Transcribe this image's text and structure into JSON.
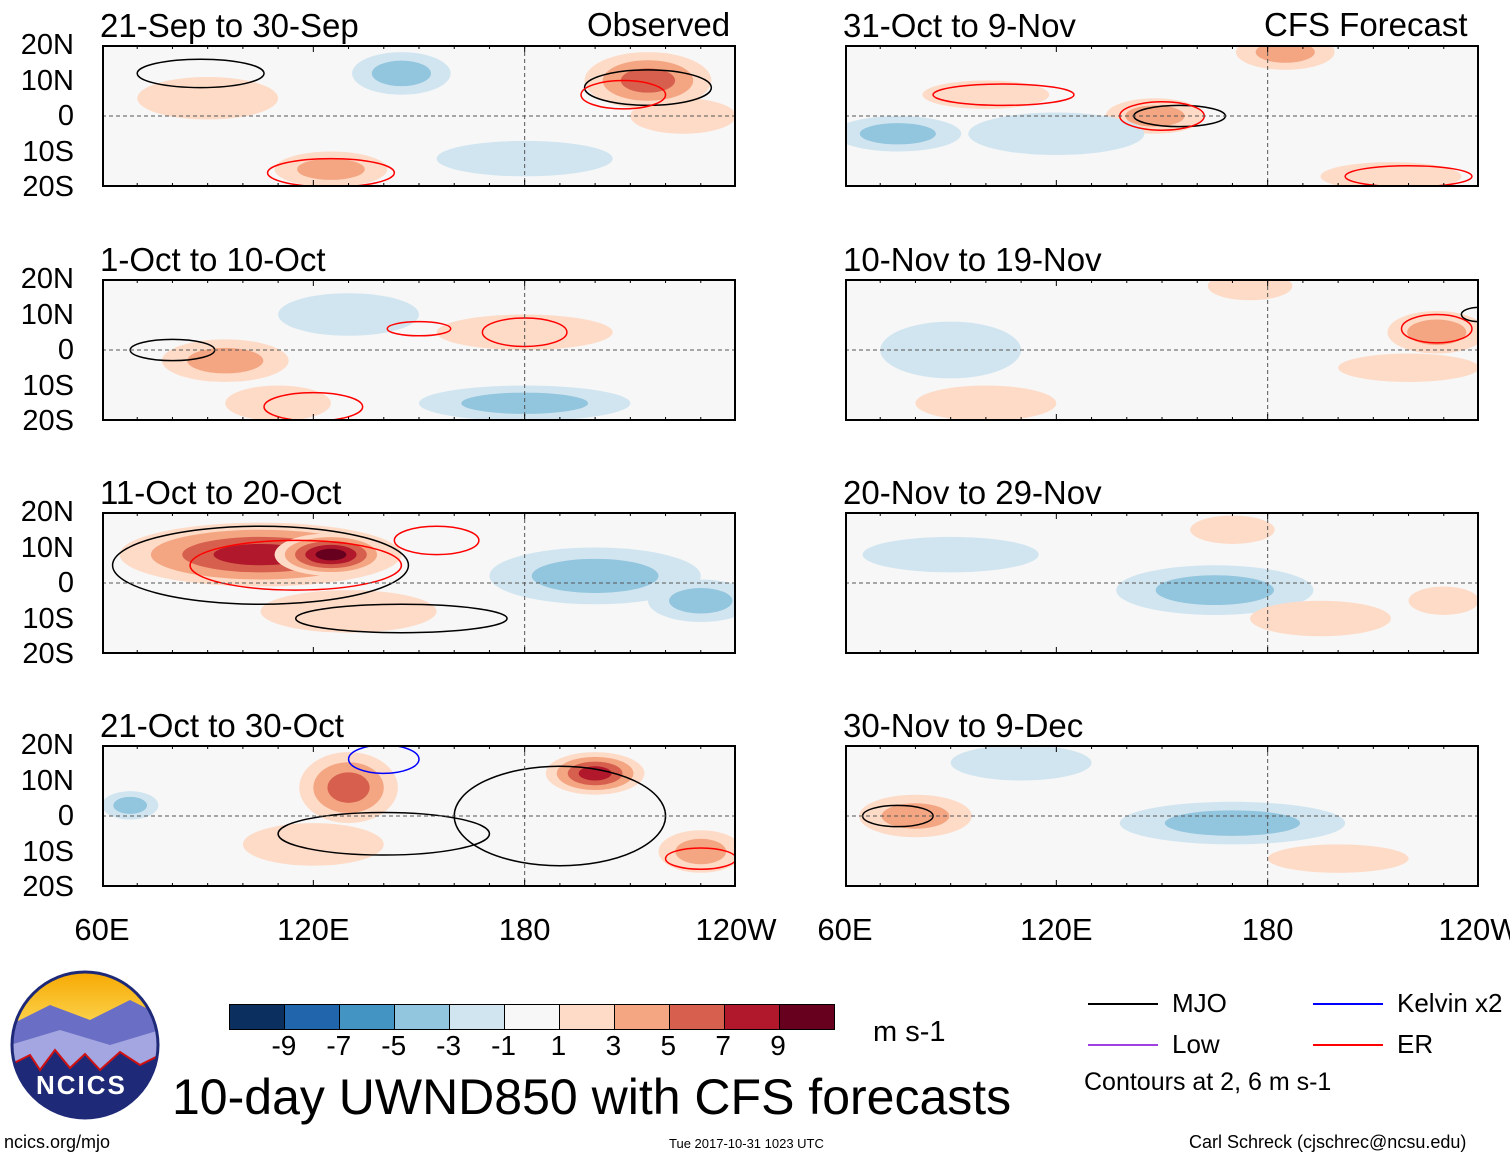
{
  "titles": {
    "left_header": "Observed",
    "right_header": "CFS Forecast",
    "main": "10-day UWND850 with CFS forecasts"
  },
  "lat_labels": [
    "20N",
    "10N",
    "0",
    "10S",
    "20S"
  ],
  "lon_labels": [
    "60E",
    "120E",
    "180",
    "120W"
  ],
  "panels": [
    {
      "title": "21-Sep to 30-Sep",
      "blobs": [
        [
          215,
          10,
          18,
          8,
          6
        ],
        [
          145,
          12,
          14,
          6,
          -5
        ],
        [
          125,
          -15,
          16,
          5,
          5
        ],
        [
          90,
          5,
          20,
          6,
          2
        ],
        [
          180,
          -12,
          25,
          5,
          -2
        ],
        [
          225,
          0,
          15,
          5,
          2
        ]
      ],
      "contours": [
        [
          88,
          12,
          18,
          4,
          "#000"
        ],
        [
          215,
          8,
          18,
          5,
          "#000"
        ],
        [
          125,
          -16,
          18,
          4,
          "#f00"
        ],
        [
          208,
          6,
          12,
          4,
          "#f00"
        ]
      ]
    },
    {
      "title": "1-Oct to 10-Oct",
      "blobs": [
        [
          180,
          -15,
          30,
          5,
          -5
        ],
        [
          95,
          -3,
          18,
          6,
          4
        ],
        [
          110,
          -15,
          15,
          5,
          3
        ],
        [
          180,
          5,
          25,
          5,
          2
        ],
        [
          130,
          10,
          20,
          6,
          -2
        ]
      ],
      "contours": [
        [
          80,
          0,
          12,
          3,
          "#000"
        ],
        [
          180,
          5,
          12,
          4,
          "#f00"
        ],
        [
          150,
          6,
          9,
          2,
          "#f00"
        ],
        [
          120,
          -16,
          14,
          4,
          "#f00"
        ]
      ]
    },
    {
      "title": "11-Oct to 20-Oct",
      "blobs": [
        [
          105,
          8,
          40,
          9,
          9
        ],
        [
          125,
          8,
          16,
          6,
          10
        ],
        [
          200,
          2,
          30,
          8,
          -4
        ],
        [
          130,
          -8,
          25,
          6,
          3
        ],
        [
          230,
          -5,
          15,
          6,
          -4
        ]
      ],
      "contours": [
        [
          105,
          5,
          42,
          11,
          "#000"
        ],
        [
          145,
          -10,
          30,
          4,
          "#000"
        ],
        [
          155,
          12,
          12,
          4,
          "#f00"
        ],
        [
          115,
          5,
          30,
          7,
          "#f00"
        ]
      ]
    },
    {
      "title": "21-Oct to 30-Oct",
      "blobs": [
        [
          130,
          8,
          14,
          10,
          7
        ],
        [
          200,
          12,
          14,
          6,
          8
        ],
        [
          68,
          3,
          8,
          4,
          -5
        ],
        [
          120,
          -8,
          20,
          6,
          3
        ],
        [
          230,
          -10,
          12,
          6,
          4
        ]
      ],
      "contours": [
        [
          190,
          0,
          30,
          14,
          "#000"
        ],
        [
          140,
          -5,
          30,
          6,
          "#000"
        ],
        [
          230,
          -12,
          10,
          3,
          "#f00"
        ],
        [
          140,
          16,
          10,
          4,
          "#00f"
        ]
      ]
    },
    {
      "title": "31-Oct to 9-Nov",
      "blobs": [
        [
          148,
          0,
          14,
          5,
          5
        ],
        [
          75,
          -5,
          18,
          5,
          -4
        ],
        [
          185,
          18,
          14,
          5,
          4
        ],
        [
          100,
          6,
          18,
          4,
          2
        ],
        [
          215,
          -17,
          20,
          4,
          3
        ],
        [
          120,
          -5,
          25,
          6,
          -2
        ]
      ],
      "contours": [
        [
          155,
          0,
          13,
          3,
          "#000"
        ],
        [
          150,
          0,
          12,
          4,
          "#f00"
        ],
        [
          105,
          6,
          20,
          3,
          "#f00"
        ],
        [
          220,
          -17,
          18,
          3,
          "#f00"
        ]
      ]
    },
    {
      "title": "10-Nov to 19-Nov",
      "blobs": [
        [
          228,
          5,
          14,
          6,
          4
        ],
        [
          175,
          18,
          12,
          4,
          3
        ],
        [
          220,
          -5,
          20,
          4,
          3
        ],
        [
          100,
          -15,
          20,
          5,
          2
        ],
        [
          90,
          0,
          20,
          8,
          -2
        ]
      ],
      "contours": [
        [
          228,
          6,
          10,
          4,
          "#f00"
        ],
        [
          240,
          10,
          5,
          2,
          "#000"
        ]
      ]
    },
    {
      "title": "20-Nov to 29-Nov",
      "blobs": [
        [
          165,
          -2,
          28,
          7,
          -4
        ],
        [
          90,
          8,
          25,
          5,
          -2
        ],
        [
          195,
          -10,
          20,
          5,
          2
        ],
        [
          170,
          15,
          12,
          4,
          2
        ],
        [
          230,
          -5,
          10,
          4,
          2
        ]
      ],
      "contours": []
    },
    {
      "title": "30-Nov to 9-Dec",
      "blobs": [
        [
          80,
          0,
          16,
          6,
          5
        ],
        [
          170,
          -2,
          32,
          6,
          -5
        ],
        [
          110,
          15,
          20,
          5,
          -2
        ],
        [
          200,
          -12,
          20,
          4,
          2
        ]
      ],
      "contours": [
        [
          75,
          0,
          10,
          3,
          "#000"
        ]
      ]
    }
  ],
  "colorbar": {
    "colors": [
      "#0b2f5e",
      "#2166ac",
      "#4393c3",
      "#92c5de",
      "#d1e5f0",
      "#f7f7f7",
      "#fddbc7",
      "#f4a582",
      "#d6604d",
      "#b2182b",
      "#67001f"
    ],
    "ticks": [
      "-9",
      "-7",
      "-5",
      "-3",
      "-1",
      "1",
      "3",
      "5",
      "7",
      "9"
    ],
    "units": "m s-1"
  },
  "legend": {
    "items": [
      {
        "label": "MJO",
        "color": "#000000"
      },
      {
        "label": "Kelvin x2",
        "color": "#0000ff"
      },
      {
        "label": "Low",
        "color": "#a040e0"
      },
      {
        "label": "ER",
        "color": "#ff0000"
      }
    ],
    "note": "Contours at 2, 6 m s-1"
  },
  "logo": {
    "text": "NCICS"
  },
  "footer": {
    "url": "ncics.org/mjo",
    "timestamp": "Tue 2017-10-31 1023 UTC",
    "credit": "Carl Schreck (cjschrec@ncsu.edu)"
  }
}
